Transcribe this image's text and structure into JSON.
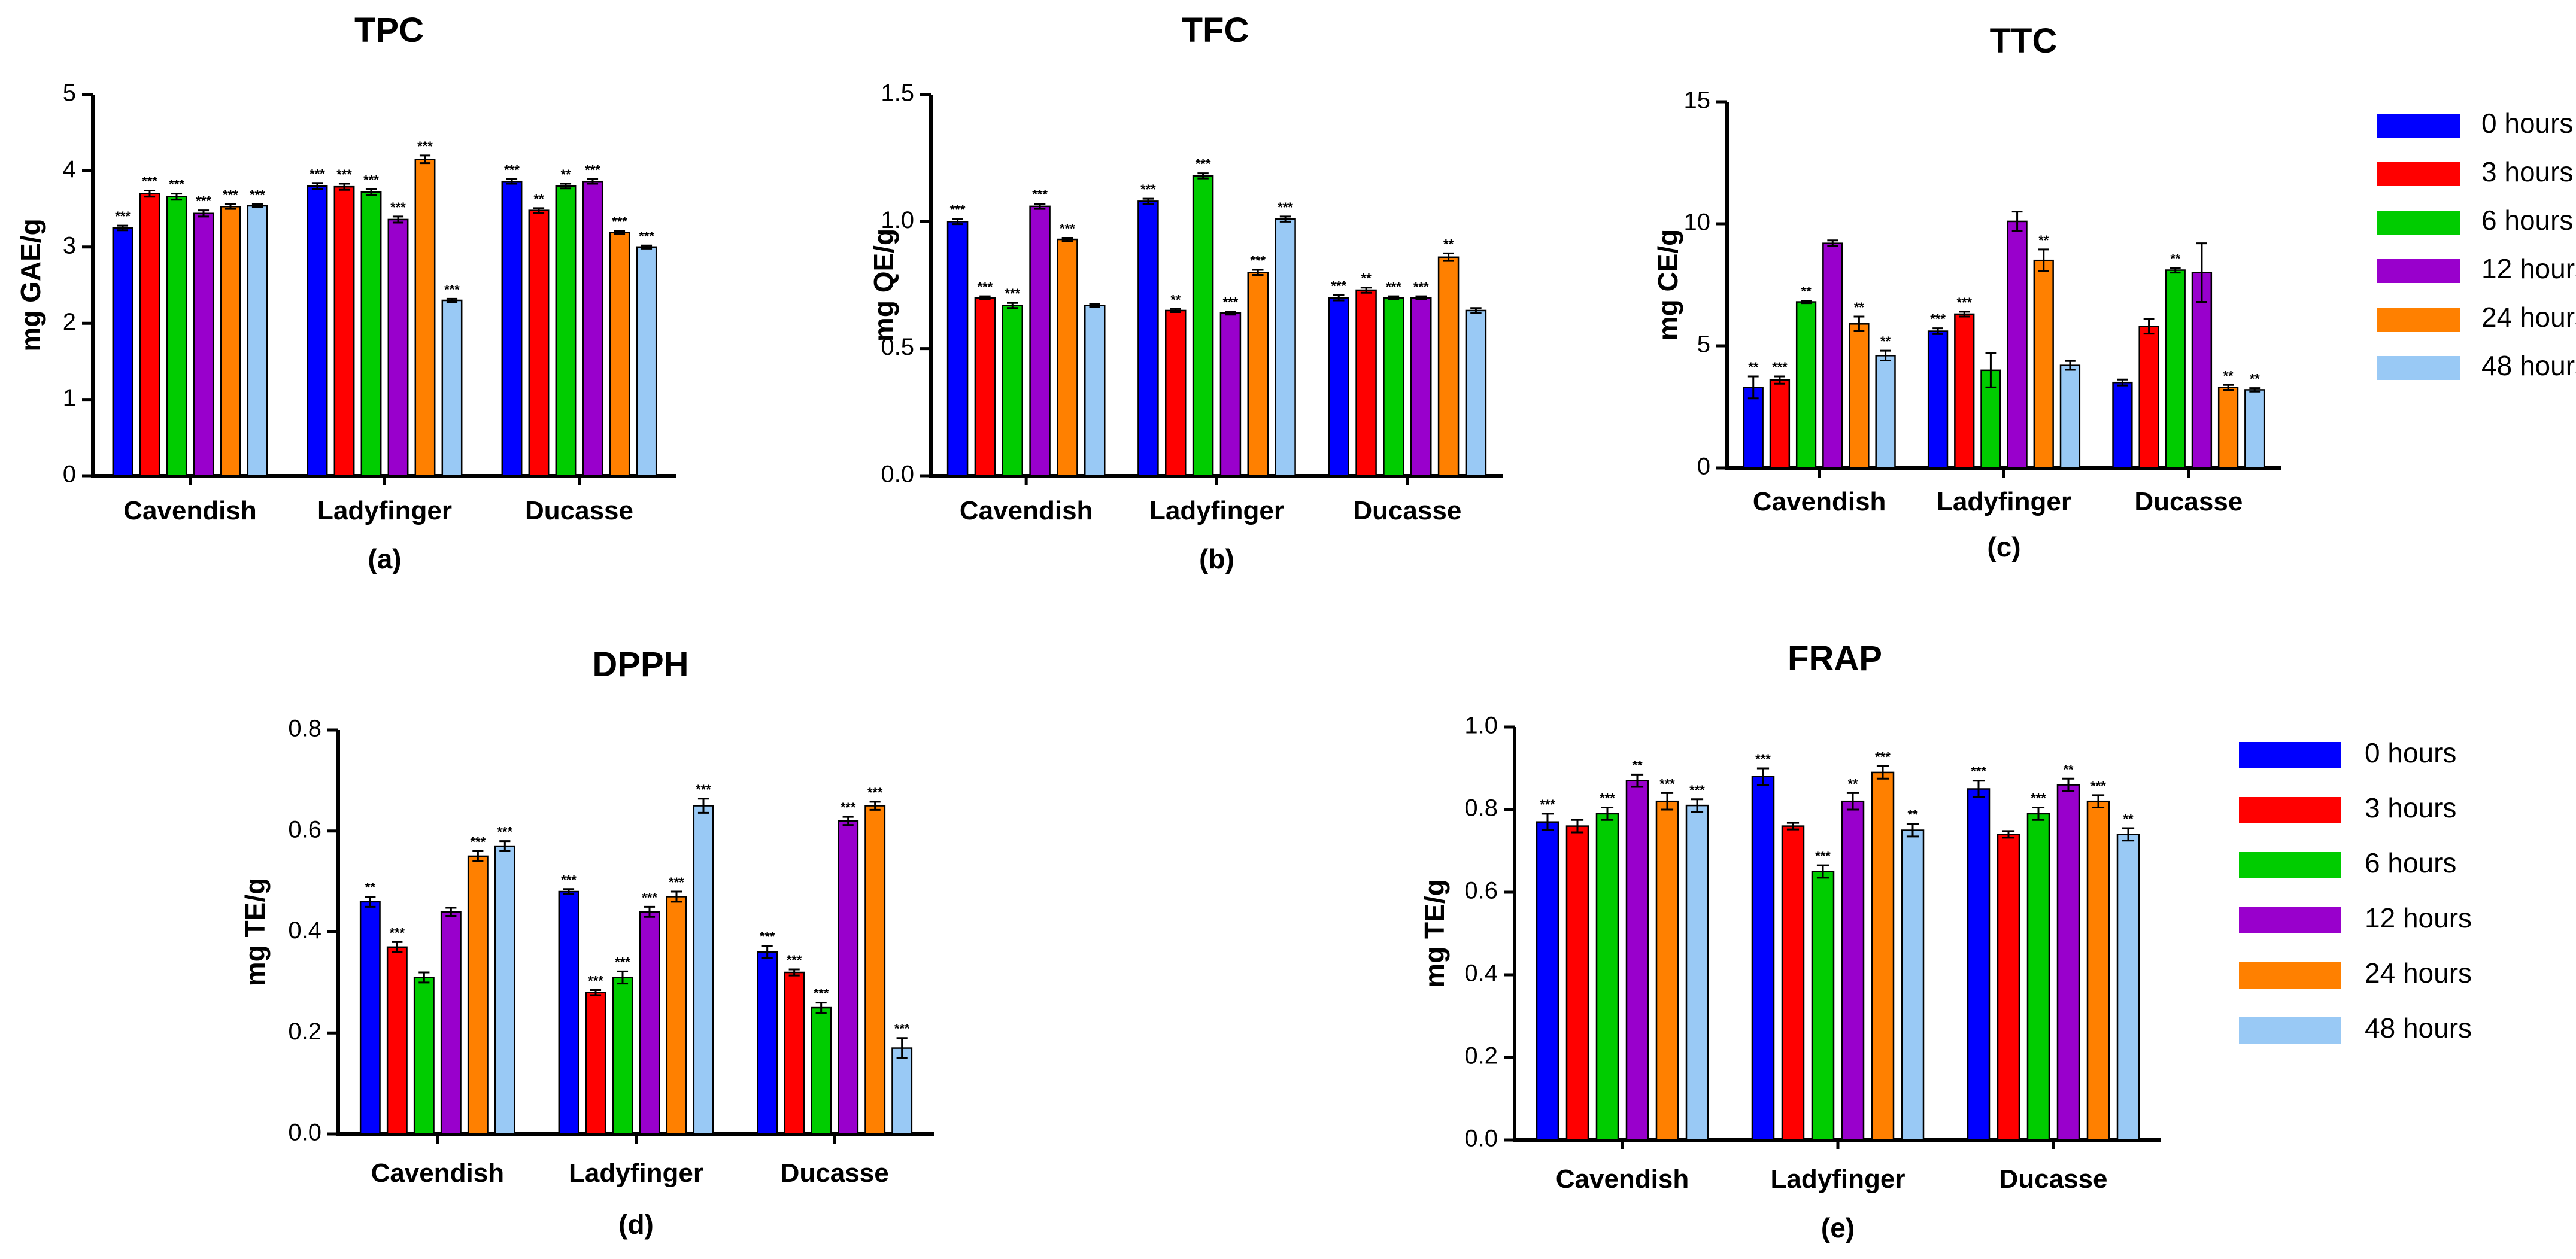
{
  "legend": {
    "entries": [
      "0 hours",
      "3 hours",
      "6 hours",
      "12 hours",
      "24 hours",
      "48 hours"
    ]
  },
  "colors": [
    "#0000FF",
    "#FF0000",
    "#00CC00",
    "#9900CC",
    "#FF8000",
    "#99C9F5"
  ],
  "chart_data": [
    {
      "type": "bar",
      "title": "TPC",
      "caption": "(a)",
      "ylabel": "mg GAE/g",
      "ylim": [
        0,
        5
      ],
      "yticks": [
        "0",
        "1",
        "2",
        "3",
        "4",
        "5"
      ],
      "categories": [
        "Cavendish",
        "Ladyfinger",
        "Ducasse"
      ],
      "series": [
        {
          "name": "0 hours",
          "values": [
            3.25,
            3.8,
            3.86
          ],
          "errors": [
            0.03,
            0.04,
            0.03
          ],
          "sig": [
            "***",
            "***",
            "***"
          ]
        },
        {
          "name": "3 hours",
          "values": [
            3.7,
            3.79,
            3.48
          ],
          "errors": [
            0.04,
            0.04,
            0.03
          ],
          "sig": [
            "***",
            "***",
            "**"
          ]
        },
        {
          "name": "6 hours",
          "values": [
            3.66,
            3.72,
            3.8
          ],
          "errors": [
            0.04,
            0.04,
            0.03
          ],
          "sig": [
            "***",
            "***",
            "**"
          ]
        },
        {
          "name": "12 hours",
          "values": [
            3.44,
            3.36,
            3.86
          ],
          "errors": [
            0.04,
            0.04,
            0.03
          ],
          "sig": [
            "***",
            "***",
            "***"
          ]
        },
        {
          "name": "24 hours",
          "values": [
            3.53,
            4.15,
            3.19
          ],
          "errors": [
            0.03,
            0.05,
            0.02
          ],
          "sig": [
            "***",
            "***",
            "***"
          ]
        },
        {
          "name": "48 hours",
          "values": [
            3.54,
            2.3,
            3.0
          ],
          "errors": [
            0.02,
            0.02,
            0.02
          ],
          "sig": [
            "***",
            "***",
            "***"
          ]
        }
      ]
    },
    {
      "type": "bar",
      "title": "TFC",
      "caption": "(b)",
      "ylabel": "mg QE/g",
      "ylim": [
        0,
        1.5
      ],
      "yticks": [
        "0.0",
        "0.5",
        "1.0",
        "1.5"
      ],
      "categories": [
        "Cavendish",
        "Ladyfinger",
        "Ducasse"
      ],
      "series": [
        {
          "name": "0 hours",
          "values": [
            1.0,
            1.08,
            0.7
          ],
          "errors": [
            0.01,
            0.01,
            0.01
          ],
          "sig": [
            "***",
            "***",
            "***"
          ]
        },
        {
          "name": "3 hours",
          "values": [
            0.7,
            0.65,
            0.73
          ],
          "errors": [
            0.006,
            0.006,
            0.01
          ],
          "sig": [
            "***",
            "**",
            "**"
          ]
        },
        {
          "name": "6 hours",
          "values": [
            0.67,
            1.18,
            0.7
          ],
          "errors": [
            0.01,
            0.01,
            0.006
          ],
          "sig": [
            "***",
            "***",
            "***"
          ]
        },
        {
          "name": "12 hours",
          "values": [
            1.06,
            0.64,
            0.7
          ],
          "errors": [
            0.01,
            0.006,
            0.006
          ],
          "sig": [
            "***",
            "***",
            "***"
          ]
        },
        {
          "name": "24 hours",
          "values": [
            0.93,
            0.8,
            0.86
          ],
          "errors": [
            0.006,
            0.01,
            0.015
          ],
          "sig": [
            "***",
            "***",
            "**"
          ]
        },
        {
          "name": "48 hours",
          "values": [
            0.67,
            1.01,
            0.65
          ],
          "errors": [
            0.006,
            0.01,
            0.01
          ],
          "sig": [
            "",
            "***",
            ""
          ]
        }
      ]
    },
    {
      "type": "bar",
      "title": "TTC",
      "caption": "(c)",
      "ylabel": "mg CE/g",
      "ylim": [
        0,
        15
      ],
      "yticks": [
        "0",
        "5",
        "10",
        "15"
      ],
      "categories": [
        "Cavendish",
        "Ladyfinger",
        "Ducasse"
      ],
      "series": [
        {
          "name": "0 hours",
          "values": [
            3.3,
            5.6,
            3.5
          ],
          "errors": [
            0.45,
            0.12,
            0.12
          ],
          "sig": [
            "**",
            "***",
            ""
          ]
        },
        {
          "name": "3 hours",
          "values": [
            3.6,
            6.3,
            5.8
          ],
          "errors": [
            0.15,
            0.1,
            0.3
          ],
          "sig": [
            "***",
            "***",
            ""
          ]
        },
        {
          "name": "6 hours",
          "values": [
            6.8,
            4.0,
            8.1
          ],
          "errors": [
            0.05,
            0.7,
            0.1
          ],
          "sig": [
            "**",
            "",
            "**"
          ]
        },
        {
          "name": "12 hours",
          "values": [
            9.2,
            10.1,
            8.0
          ],
          "errors": [
            0.12,
            0.4,
            1.2
          ],
          "sig": [
            "",
            "",
            ""
          ]
        },
        {
          "name": "24 hours",
          "values": [
            5.9,
            8.5,
            3.3
          ],
          "errors": [
            0.3,
            0.45,
            0.1
          ],
          "sig": [
            "**",
            "**",
            "**"
          ]
        },
        {
          "name": "48 hours",
          "values": [
            4.6,
            4.2,
            3.2
          ],
          "errors": [
            0.2,
            0.18,
            0.07
          ],
          "sig": [
            "**",
            "",
            "**"
          ]
        }
      ]
    },
    {
      "type": "bar",
      "title": "DPPH",
      "caption": "(d)",
      "ylabel": "mg TE/g",
      "ylim": [
        0,
        0.8
      ],
      "yticks": [
        "0.0",
        "0.2",
        "0.4",
        "0.6",
        "0.8"
      ],
      "categories": [
        "Cavendish",
        "Ladyfinger",
        "Ducasse"
      ],
      "series": [
        {
          "name": "0 hours",
          "values": [
            0.46,
            0.48,
            0.36
          ],
          "errors": [
            0.01,
            0.005,
            0.012
          ],
          "sig": [
            "**",
            "***",
            "***"
          ]
        },
        {
          "name": "3 hours",
          "values": [
            0.37,
            0.28,
            0.32
          ],
          "errors": [
            0.01,
            0.005,
            0.006
          ],
          "sig": [
            "***",
            "***",
            "***"
          ]
        },
        {
          "name": "6 hours",
          "values": [
            0.31,
            0.31,
            0.25
          ],
          "errors": [
            0.01,
            0.012,
            0.01
          ],
          "sig": [
            "",
            "***",
            "***"
          ]
        },
        {
          "name": "12 hours",
          "values": [
            0.44,
            0.44,
            0.62
          ],
          "errors": [
            0.008,
            0.01,
            0.008
          ],
          "sig": [
            "",
            "***",
            "***"
          ]
        },
        {
          "name": "24 hours",
          "values": [
            0.55,
            0.47,
            0.65
          ],
          "errors": [
            0.01,
            0.01,
            0.008
          ],
          "sig": [
            "***",
            "***",
            "***"
          ]
        },
        {
          "name": "48 hours",
          "values": [
            0.57,
            0.65,
            0.17
          ],
          "errors": [
            0.01,
            0.014,
            0.02
          ],
          "sig": [
            "***",
            "***",
            "***"
          ]
        }
      ]
    },
    {
      "type": "bar",
      "title": "FRAP",
      "caption": "(e)",
      "ylabel": "mg TE/g",
      "ylim": [
        0,
        1.0
      ],
      "yticks": [
        "0.0",
        "0.2",
        "0.4",
        "0.6",
        "0.8",
        "1.0"
      ],
      "categories": [
        "Cavendish",
        "Ladyfinger",
        "Ducasse"
      ],
      "series": [
        {
          "name": "0 hours",
          "values": [
            0.77,
            0.88,
            0.85
          ],
          "errors": [
            0.02,
            0.02,
            0.02
          ],
          "sig": [
            "***",
            "***",
            "***"
          ]
        },
        {
          "name": "3 hours",
          "values": [
            0.76,
            0.76,
            0.74
          ],
          "errors": [
            0.015,
            0.008,
            0.008
          ],
          "sig": [
            "",
            "",
            ""
          ]
        },
        {
          "name": "6 hours",
          "values": [
            0.79,
            0.65,
            0.79
          ],
          "errors": [
            0.015,
            0.015,
            0.015
          ],
          "sig": [
            "***",
            "***",
            "***"
          ]
        },
        {
          "name": "12 hours",
          "values": [
            0.87,
            0.82,
            0.86
          ],
          "errors": [
            0.015,
            0.02,
            0.015
          ],
          "sig": [
            "**",
            "**",
            "**"
          ]
        },
        {
          "name": "24 hours",
          "values": [
            0.82,
            0.89,
            0.82
          ],
          "errors": [
            0.02,
            0.015,
            0.015
          ],
          "sig": [
            "***",
            "***",
            "***"
          ]
        },
        {
          "name": "48 hours",
          "values": [
            0.81,
            0.75,
            0.74
          ],
          "errors": [
            0.015,
            0.015,
            0.015
          ],
          "sig": [
            "***",
            "**",
            "**"
          ]
        }
      ]
    }
  ]
}
